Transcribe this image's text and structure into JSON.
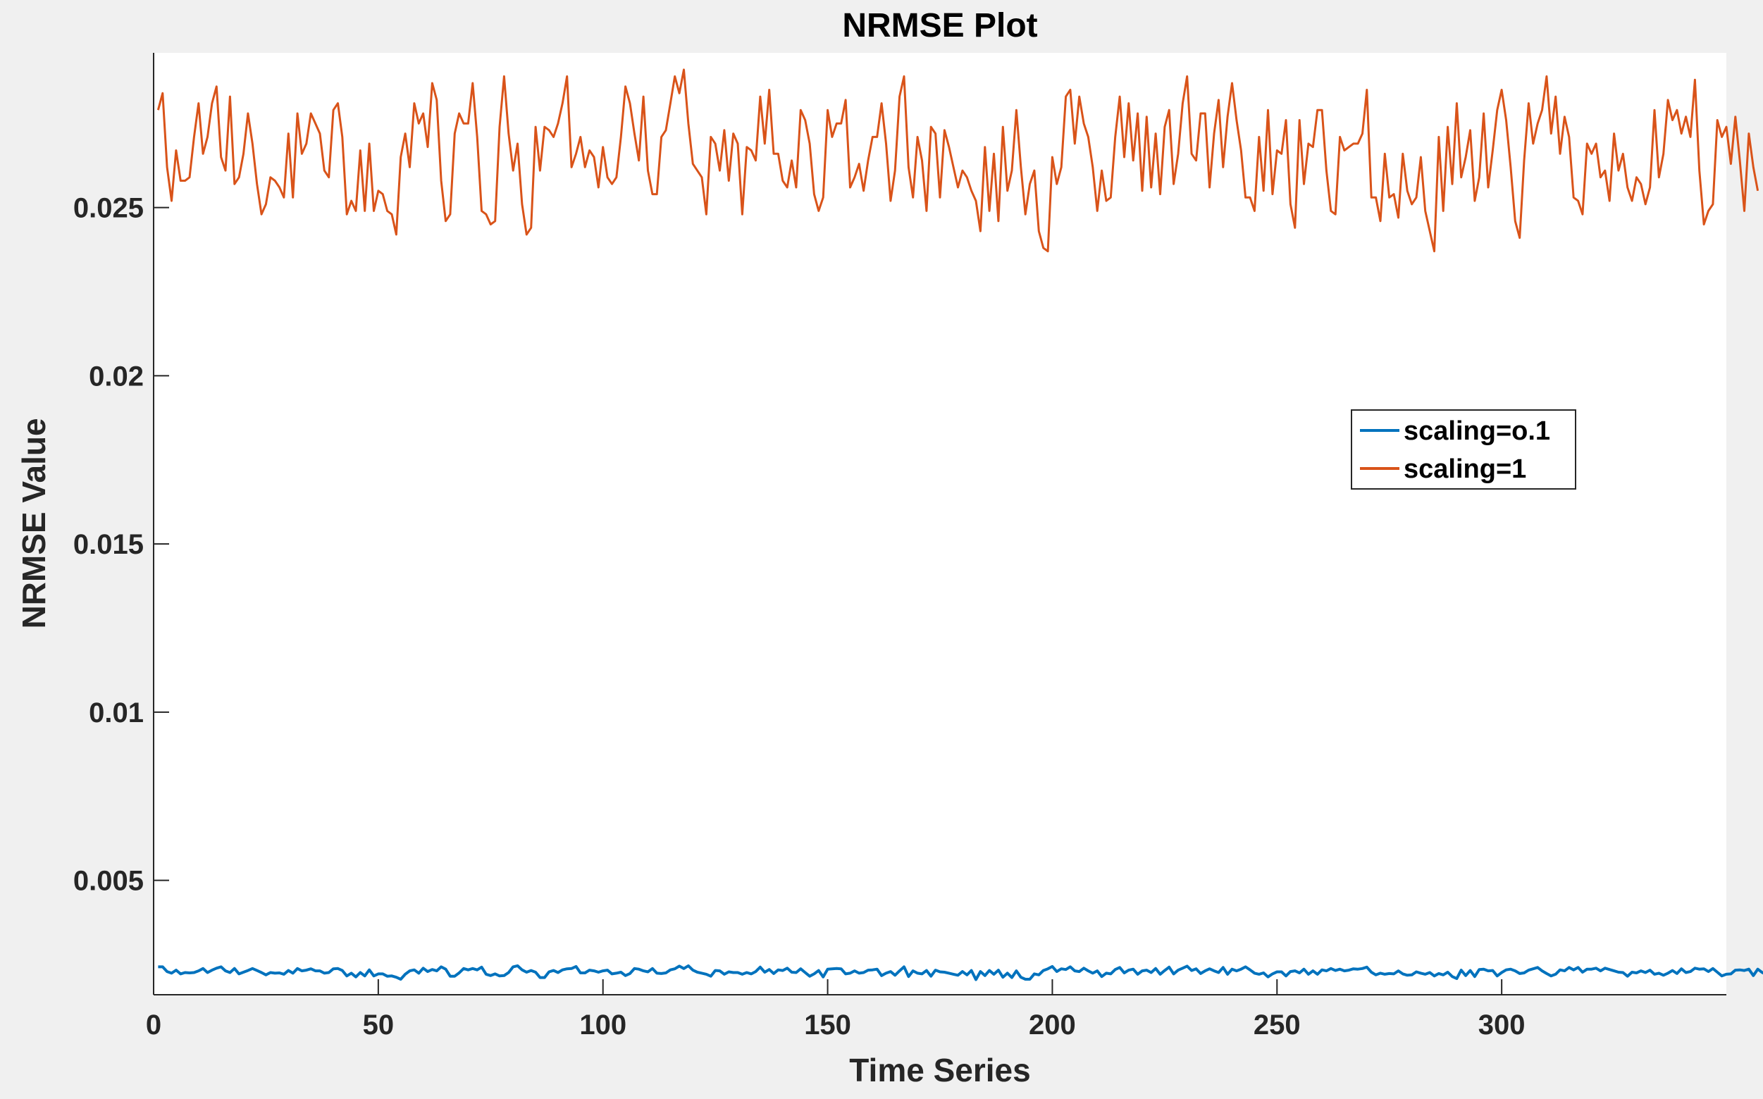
{
  "chart_data": {
    "type": "line",
    "title": "NRMSE Plot",
    "xlabel": "Time Series",
    "ylabel": "NRMSE Value",
    "xlim": [
      0,
      350
    ],
    "ylim": [
      0.0016,
      0.0296
    ],
    "xticks": [
      0,
      50,
      100,
      150,
      200,
      250,
      300
    ],
    "xtick_labels": [
      "0",
      "50",
      "100",
      "150",
      "200",
      "250",
      "300"
    ],
    "yticks": [
      0.005,
      0.01,
      0.015,
      0.02,
      0.025
    ],
    "ytick_labels": [
      "0.005",
      "0.01",
      "0.015",
      "0.02",
      "0.025"
    ],
    "grid": false,
    "legend_position": "right",
    "series": [
      {
        "name": "scaling=o.1",
        "color": "#0072BD",
        "x_start": 1,
        "values": [
          0.00243,
          0.00243,
          0.00229,
          0.00224,
          0.00233,
          0.00222,
          0.00226,
          0.00225,
          0.00226,
          0.00231,
          0.00238,
          0.00226,
          0.00233,
          0.00239,
          0.00243,
          0.00231,
          0.00226,
          0.00238,
          0.00222,
          0.00227,
          0.00232,
          0.00238,
          0.00232,
          0.00226,
          0.00219,
          0.00226,
          0.00224,
          0.00225,
          0.00221,
          0.00232,
          0.00224,
          0.00238,
          0.00231,
          0.00233,
          0.00237,
          0.00231,
          0.00231,
          0.00224,
          0.00226,
          0.00237,
          0.00238,
          0.00232,
          0.00216,
          0.00224,
          0.00213,
          0.00226,
          0.00216,
          0.00234,
          0.00216,
          0.00222,
          0.00222,
          0.00215,
          0.00216,
          0.00212,
          0.00206,
          0.00221,
          0.00231,
          0.00234,
          0.00224,
          0.00239,
          0.00229,
          0.00235,
          0.00231,
          0.00243,
          0.00236,
          0.00215,
          0.00215,
          0.00225,
          0.00238,
          0.00234,
          0.00238,
          0.00234,
          0.00242,
          0.00221,
          0.00217,
          0.00222,
          0.00216,
          0.00217,
          0.00226,
          0.00243,
          0.00246,
          0.00234,
          0.00227,
          0.00232,
          0.00227,
          0.00211,
          0.00211,
          0.00228,
          0.00232,
          0.00226,
          0.00234,
          0.00237,
          0.00238,
          0.00244,
          0.00225,
          0.00225,
          0.00233,
          0.00231,
          0.00227,
          0.00231,
          0.00233,
          0.00222,
          0.00224,
          0.00227,
          0.00217,
          0.00223,
          0.00238,
          0.00236,
          0.00231,
          0.00228,
          0.00238,
          0.00224,
          0.00223,
          0.00225,
          0.00234,
          0.00237,
          0.00245,
          0.00238,
          0.00246,
          0.00233,
          0.00227,
          0.00224,
          0.00221,
          0.00215,
          0.00232,
          0.00231,
          0.00221,
          0.00228,
          0.00226,
          0.00226,
          0.00221,
          0.00226,
          0.00222,
          0.00229,
          0.00242,
          0.00227,
          0.00235,
          0.00223,
          0.00234,
          0.00232,
          0.00239,
          0.00227,
          0.00226,
          0.00237,
          0.00226,
          0.00215,
          0.00222,
          0.00232,
          0.00213,
          0.00236,
          0.00237,
          0.00238,
          0.00237,
          0.00222,
          0.00224,
          0.00231,
          0.00224,
          0.00226,
          0.00233,
          0.00234,
          0.00236,
          0.00217,
          0.00224,
          0.00229,
          0.00218,
          0.00231,
          0.00243,
          0.00214,
          0.00231,
          0.00224,
          0.00222,
          0.00232,
          0.00215,
          0.00233,
          0.00228,
          0.00227,
          0.00224,
          0.00221,
          0.00218,
          0.00229,
          0.00219,
          0.00232,
          0.00205,
          0.00229,
          0.00217,
          0.00232,
          0.00221,
          0.00233,
          0.00212,
          0.00224,
          0.00211,
          0.00231,
          0.00212,
          0.00206,
          0.00206,
          0.00222,
          0.00219,
          0.00232,
          0.00237,
          0.00244,
          0.00229,
          0.00237,
          0.00235,
          0.00243,
          0.00231,
          0.00229,
          0.00239,
          0.00231,
          0.00224,
          0.00231,
          0.00214,
          0.00224,
          0.00222,
          0.00235,
          0.00241,
          0.00225,
          0.00233,
          0.00236,
          0.00221,
          0.00231,
          0.00233,
          0.00226,
          0.00238,
          0.00221,
          0.00232,
          0.00242,
          0.00222,
          0.00233,
          0.00239,
          0.00245,
          0.00232,
          0.00237,
          0.00223,
          0.00231,
          0.00237,
          0.00231,
          0.00226,
          0.00241,
          0.00221,
          0.00236,
          0.00231,
          0.00236,
          0.00243,
          0.00234,
          0.00224,
          0.00221,
          0.00225,
          0.00213,
          0.00222,
          0.00228,
          0.00228,
          0.00216,
          0.00229,
          0.00231,
          0.00225,
          0.00236,
          0.00221,
          0.00231,
          0.00221,
          0.00234,
          0.00231,
          0.00238,
          0.00232,
          0.00236,
          0.00231,
          0.00233,
          0.00237,
          0.00236,
          0.00238,
          0.00242,
          0.00227,
          0.00219,
          0.00224,
          0.00221,
          0.00223,
          0.00222,
          0.00231,
          0.00222,
          0.00218,
          0.00219,
          0.00228,
          0.00224,
          0.00221,
          0.00226,
          0.00216,
          0.00223,
          0.00219,
          0.00227,
          0.00214,
          0.00208,
          0.00233,
          0.00217,
          0.00232,
          0.00214,
          0.00235,
          0.00236,
          0.00231,
          0.00232,
          0.00216,
          0.00226,
          0.00234,
          0.00236,
          0.00231,
          0.00223,
          0.00225,
          0.00233,
          0.00237,
          0.00241,
          0.00231,
          0.00223,
          0.00216,
          0.00221,
          0.00234,
          0.00231,
          0.00241,
          0.00234,
          0.00241,
          0.00227,
          0.00236,
          0.00236,
          0.00239,
          0.00231,
          0.00239,
          0.00235,
          0.00231,
          0.00227,
          0.00226,
          0.00215,
          0.00227,
          0.00225,
          0.00231,
          0.00226,
          0.00233,
          0.00221,
          0.00224,
          0.00218,
          0.00224,
          0.00232,
          0.00223,
          0.00237,
          0.00226,
          0.00229,
          0.00239,
          0.00236,
          0.00237,
          0.00229,
          0.00238,
          0.00227,
          0.00216,
          0.00221,
          0.00222,
          0.00233,
          0.00234,
          0.00232,
          0.00236,
          0.00217,
          0.00236,
          0.00226,
          0.00219
        ]
      },
      {
        "name": "scaling=1",
        "color": "#D95319",
        "x_start": 1,
        "values": [
          0.0279,
          0.0284,
          0.0262,
          0.0252,
          0.0267,
          0.0258,
          0.0258,
          0.0259,
          0.0271,
          0.0281,
          0.0266,
          0.0271,
          0.0281,
          0.0286,
          0.0265,
          0.0261,
          0.0283,
          0.0257,
          0.0259,
          0.0266,
          0.0278,
          0.0269,
          0.0257,
          0.0248,
          0.0251,
          0.0259,
          0.0258,
          0.0256,
          0.0253,
          0.0272,
          0.0253,
          0.0278,
          0.0266,
          0.0269,
          0.0278,
          0.0275,
          0.0272,
          0.0261,
          0.0259,
          0.0279,
          0.0281,
          0.0271,
          0.0248,
          0.0252,
          0.0249,
          0.0267,
          0.0249,
          0.0269,
          0.0249,
          0.0255,
          0.0254,
          0.0249,
          0.0248,
          0.0242,
          0.0265,
          0.0272,
          0.0262,
          0.0281,
          0.0275,
          0.0278,
          0.0268,
          0.0287,
          0.0282,
          0.0258,
          0.0246,
          0.0248,
          0.0272,
          0.0278,
          0.0275,
          0.0275,
          0.0287,
          0.0271,
          0.0249,
          0.0248,
          0.0245,
          0.0246,
          0.0274,
          0.0289,
          0.0272,
          0.0261,
          0.0269,
          0.0251,
          0.0242,
          0.0244,
          0.0274,
          0.0261,
          0.0274,
          0.0273,
          0.0271,
          0.0275,
          0.0281,
          0.0289,
          0.0262,
          0.0266,
          0.0271,
          0.0262,
          0.0267,
          0.0265,
          0.0256,
          0.0268,
          0.0259,
          0.0257,
          0.0259,
          0.0271,
          0.0286,
          0.0281,
          0.0272,
          0.0264,
          0.0283,
          0.0261,
          0.0254,
          0.0254,
          0.0271,
          0.0273,
          0.0281,
          0.0289,
          0.0284,
          0.0291,
          0.0275,
          0.0263,
          0.0261,
          0.0259,
          0.0248,
          0.0271,
          0.0269,
          0.0261,
          0.0273,
          0.0258,
          0.0272,
          0.0269,
          0.0248,
          0.0268,
          0.0267,
          0.0264,
          0.0283,
          0.0269,
          0.0285,
          0.0266,
          0.0266,
          0.0258,
          0.0256,
          0.0264,
          0.0256,
          0.0279,
          0.0276,
          0.0269,
          0.0254,
          0.0249,
          0.0253,
          0.0279,
          0.0271,
          0.0275,
          0.0275,
          0.0282,
          0.0256,
          0.0259,
          0.0263,
          0.0255,
          0.0264,
          0.0271,
          0.0271,
          0.0281,
          0.0269,
          0.0252,
          0.0261,
          0.0283,
          0.0289,
          0.0262,
          0.0253,
          0.0271,
          0.0264,
          0.0249,
          0.0274,
          0.0272,
          0.0253,
          0.0273,
          0.0268,
          0.0262,
          0.0256,
          0.0261,
          0.0259,
          0.0255,
          0.0252,
          0.0243,
          0.0268,
          0.0249,
          0.0266,
          0.0246,
          0.0274,
          0.0255,
          0.0261,
          0.0279,
          0.0262,
          0.0248,
          0.0257,
          0.0261,
          0.0243,
          0.0238,
          0.0237,
          0.0265,
          0.0257,
          0.0262,
          0.0283,
          0.0285,
          0.0269,
          0.0283,
          0.0275,
          0.0271,
          0.0262,
          0.0249,
          0.0261,
          0.0252,
          0.0253,
          0.0271,
          0.0283,
          0.0265,
          0.0281,
          0.0264,
          0.0278,
          0.0255,
          0.0277,
          0.0256,
          0.0272,
          0.0254,
          0.0274,
          0.0279,
          0.0257,
          0.0266,
          0.0281,
          0.0289,
          0.0266,
          0.0264,
          0.0278,
          0.0278,
          0.0256,
          0.0272,
          0.0282,
          0.0262,
          0.0277,
          0.0287,
          0.0276,
          0.0267,
          0.0253,
          0.0253,
          0.0249,
          0.0271,
          0.0255,
          0.0279,
          0.0254,
          0.0267,
          0.0266,
          0.0276,
          0.0251,
          0.0244,
          0.0276,
          0.0257,
          0.0269,
          0.0268,
          0.0279,
          0.0279,
          0.0261,
          0.0249,
          0.0248,
          0.0271,
          0.0267,
          0.0268,
          0.0269,
          0.0269,
          0.0272,
          0.0285,
          0.0253,
          0.0253,
          0.0246,
          0.0266,
          0.0253,
          0.0254,
          0.0247,
          0.0266,
          0.0255,
          0.0251,
          0.0253,
          0.0265,
          0.0249,
          0.0243,
          0.0237,
          0.0271,
          0.0249,
          0.0274,
          0.0257,
          0.0281,
          0.0259,
          0.0265,
          0.0273,
          0.0252,
          0.0259,
          0.0278,
          0.0256,
          0.0267,
          0.0279,
          0.0285,
          0.0276,
          0.0262,
          0.0246,
          0.0241,
          0.0264,
          0.0281,
          0.0269,
          0.0275,
          0.0279,
          0.0289,
          0.0272,
          0.0283,
          0.0266,
          0.0277,
          0.0271,
          0.0253,
          0.0252,
          0.0248,
          0.0269,
          0.0266,
          0.0269,
          0.0259,
          0.0261,
          0.0252,
          0.0272,
          0.0261,
          0.0266,
          0.0256,
          0.0252,
          0.0259,
          0.0257,
          0.0251,
          0.0256,
          0.0279,
          0.0259,
          0.0266,
          0.0282,
          0.0276,
          0.0279,
          0.0272,
          0.0277,
          0.0271,
          0.0288,
          0.0261,
          0.0245,
          0.0249,
          0.0251,
          0.0276,
          0.0271,
          0.0274,
          0.0263,
          0.0277,
          0.0264,
          0.0249,
          0.0272,
          0.0262,
          0.0255
        ]
      }
    ]
  }
}
